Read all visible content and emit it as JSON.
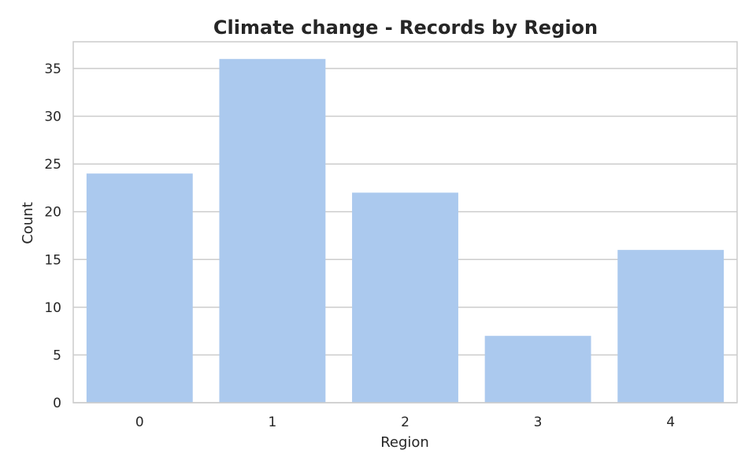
{
  "chart_data": {
    "type": "bar",
    "title": "Climate change - Records by Region",
    "xlabel": "Region",
    "ylabel": "Count",
    "categories": [
      "0",
      "1",
      "2",
      "3",
      "4"
    ],
    "values": [
      24,
      36,
      22,
      7,
      16
    ],
    "ylim": [
      0,
      37.8
    ],
    "yticks": [
      0,
      5,
      10,
      15,
      20,
      25,
      30,
      35
    ],
    "grid": true,
    "legend": "none",
    "colors": {
      "bar": "#abc9ee",
      "grid": "#cccccc",
      "frame": "#cccccc",
      "text": "#262626"
    }
  }
}
